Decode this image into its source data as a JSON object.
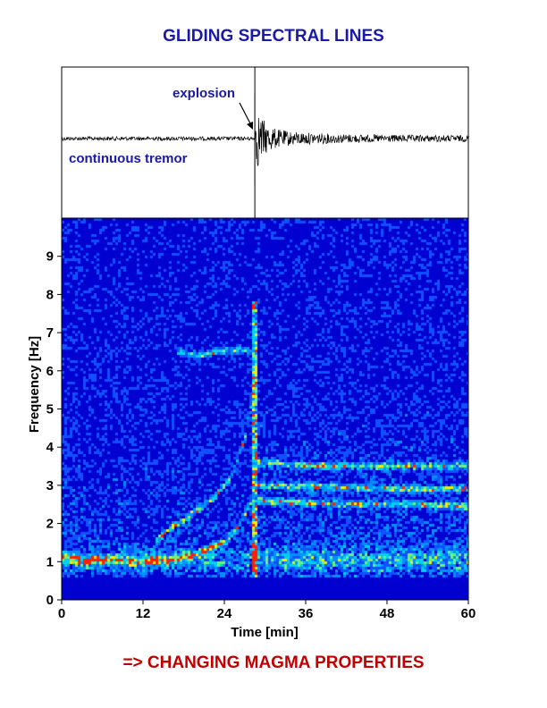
{
  "title": "GLIDING SPECTRAL LINES",
  "footer": "=>  CHANGING MAGMA PROPERTIES",
  "chart_data": [
    {
      "type": "line",
      "panel": "seismogram",
      "annotations": [
        "explosion",
        "continuous tremor"
      ],
      "explosion_time": 28.5,
      "xlim": [
        0,
        60
      ]
    },
    {
      "type": "heatmap",
      "panel": "spectrogram",
      "xlabel": "Time [min]",
      "ylabel": "Frequency [Hz]",
      "xlim": [
        0,
        60
      ],
      "ylim": [
        0,
        10
      ],
      "xticks": [
        0,
        12,
        24,
        36,
        48,
        60
      ],
      "yticks": [
        0,
        1,
        2,
        3,
        4,
        5,
        6,
        7,
        8,
        9
      ],
      "colors": {
        "background": "#0000d0",
        "low": "#0a3cff",
        "mid": "#00b0ff",
        "high": "#f0f000",
        "peak": "#ff2000"
      },
      "gliding_lines": [
        {
          "t": [
            0,
            10,
            16,
            20,
            24,
            26,
            28
          ],
          "f": [
            1.1,
            1.0,
            1.05,
            1.2,
            1.5,
            1.9,
            2.6
          ]
        },
        {
          "t": [
            14,
            18,
            22,
            25,
            27,
            28.5
          ],
          "f": [
            1.6,
            2.1,
            2.6,
            3.2,
            4.2,
            5.6
          ]
        },
        {
          "t": [
            17,
            20,
            23,
            26,
            28
          ],
          "f": [
            6.5,
            6.4,
            6.5,
            6.55,
            6.5
          ]
        }
      ],
      "post_explosion_lines": [
        {
          "t": [
            29,
            40,
            50,
            60
          ],
          "f": [
            2.6,
            2.5,
            2.5,
            2.45
          ]
        },
        {
          "t": [
            29,
            40,
            50,
            60
          ],
          "f": [
            3.0,
            2.95,
            2.9,
            2.9
          ]
        },
        {
          "t": [
            29,
            40,
            50,
            60
          ],
          "f": [
            3.6,
            3.5,
            3.5,
            3.5
          ]
        }
      ]
    }
  ]
}
